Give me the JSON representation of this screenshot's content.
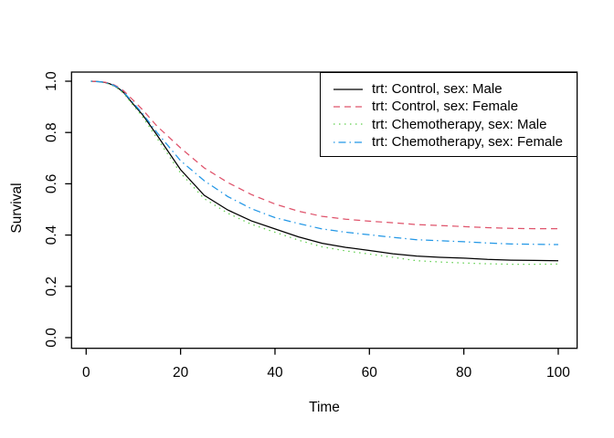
{
  "chart_data": {
    "type": "line",
    "title": "",
    "xlabel": "Time",
    "ylabel": "Survival",
    "grid": false,
    "legend_position": "topright",
    "xlim": [
      -3.1,
      104.0
    ],
    "ylim": [
      -0.0416,
      1.0356
    ],
    "xticks": [
      0,
      20,
      40,
      60,
      80,
      100
    ],
    "yticks": [
      "0.0",
      "0.2",
      "0.4",
      "0.6",
      "0.8",
      "1.0"
    ],
    "x": [
      1,
      2,
      3,
      4,
      5,
      6,
      7,
      8,
      10,
      12,
      15,
      20,
      25,
      30,
      35,
      40,
      45,
      50,
      55,
      60,
      65,
      70,
      75,
      80,
      85,
      90,
      95,
      100
    ],
    "series": [
      {
        "name": "trt: Control, sex: Male",
        "color": "#000000",
        "linestyle": "solid",
        "dasharray": "none",
        "values": [
          1.0,
          0.999,
          0.998,
          0.995,
          0.99,
          0.982,
          0.97,
          0.955,
          0.91,
          0.868,
          0.79,
          0.655,
          0.555,
          0.498,
          0.455,
          0.424,
          0.393,
          0.368,
          0.352,
          0.34,
          0.327,
          0.318,
          0.313,
          0.31,
          0.305,
          0.302,
          0.301,
          0.3
        ]
      },
      {
        "name": "trt: Control, sex: Female",
        "color": "#DF536B",
        "linestyle": "dashed",
        "dasharray": "7 5",
        "values": [
          1.0,
          0.999,
          0.998,
          0.996,
          0.992,
          0.985,
          0.975,
          0.962,
          0.925,
          0.888,
          0.825,
          0.74,
          0.662,
          0.605,
          0.558,
          0.521,
          0.493,
          0.473,
          0.462,
          0.454,
          0.448,
          0.441,
          0.437,
          0.433,
          0.429,
          0.426,
          0.425,
          0.425
        ]
      },
      {
        "name": "trt: Chemotherapy, sex: Male",
        "color": "#61D04F",
        "linestyle": "dotted",
        "dasharray": "1.5 4.5",
        "values": [
          1.0,
          0.999,
          0.997,
          0.994,
          0.988,
          0.98,
          0.967,
          0.951,
          0.905,
          0.86,
          0.778,
          0.642,
          0.542,
          0.485,
          0.442,
          0.411,
          0.38,
          0.354,
          0.338,
          0.326,
          0.313,
          0.3,
          0.295,
          0.291,
          0.288,
          0.286,
          0.286,
          0.287
        ]
      },
      {
        "name": "trt: Chemotherapy, sex: Female",
        "color": "#2297E6",
        "linestyle": "dashdot",
        "dasharray": "1.5 4 8 4",
        "values": [
          1.0,
          0.999,
          0.998,
          0.995,
          0.99,
          0.983,
          0.972,
          0.957,
          0.915,
          0.873,
          0.8,
          0.69,
          0.612,
          0.55,
          0.503,
          0.468,
          0.445,
          0.424,
          0.411,
          0.401,
          0.391,
          0.382,
          0.378,
          0.374,
          0.369,
          0.365,
          0.364,
          0.363
        ]
      }
    ]
  }
}
